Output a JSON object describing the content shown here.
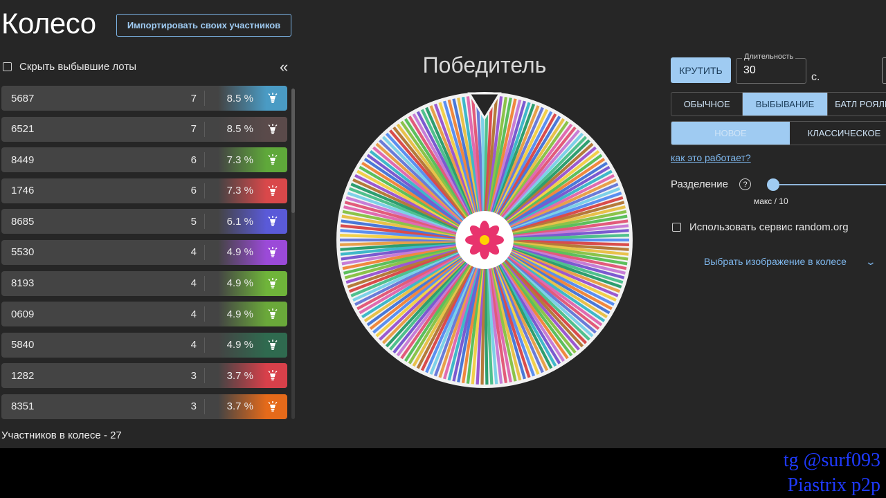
{
  "app": {
    "title": "Колесо",
    "import_button": "Импортировать своих участников"
  },
  "lots_panel": {
    "hide_label": "Скрыть выбывшие лоты",
    "collapse_icon": "«",
    "items": [
      {
        "name": "5687",
        "amount": "7",
        "percent": "8.5 %",
        "color": "#4a9bc4"
      },
      {
        "name": "6521",
        "amount": "7",
        "percent": "8.5 %",
        "color": "#5a4a4a"
      },
      {
        "name": "8449",
        "amount": "6",
        "percent": "7.3 %",
        "color": "#5fa83a"
      },
      {
        "name": "1746",
        "amount": "6",
        "percent": "7.3 %",
        "color": "#d9484a"
      },
      {
        "name": "8685",
        "amount": "5",
        "percent": "6.1 %",
        "color": "#5a5ad8"
      },
      {
        "name": "5530",
        "amount": "4",
        "percent": "4.9 %",
        "color": "#9b4ad8"
      },
      {
        "name": "8193",
        "amount": "4",
        "percent": "4.9 %",
        "color": "#6fb43a"
      },
      {
        "name": "0609",
        "amount": "4",
        "percent": "4.9 %",
        "color": "#6aa83a"
      },
      {
        "name": "5840",
        "amount": "4",
        "percent": "4.9 %",
        "color": "#2f6a4f"
      },
      {
        "name": "1282",
        "amount": "3",
        "percent": "3.7 %",
        "color": "#d8404a"
      },
      {
        "name": "8351",
        "amount": "3",
        "percent": "3.7 %",
        "color": "#e56a1a"
      }
    ],
    "participants": "Участников в колесе - 27"
  },
  "wheel": {
    "title": "Победитель"
  },
  "controls": {
    "spin_button": "КРУТИТЬ",
    "duration_label": "Длительность",
    "duration_value": "30",
    "duration_unit": "с.",
    "modes": [
      "ОБЫЧНОЕ",
      "ВЫБЫВАНИЕ",
      "БАТЛ РОЯЛЬ"
    ],
    "active_mode": 1,
    "types": [
      "НОВОЕ",
      "КЛАССИЧЕСКОЕ"
    ],
    "active_type": 0,
    "how_link": "как это работает?",
    "split_label": "Разделение",
    "help_icon": "?",
    "split_caption": "макс / 10",
    "random_org_label": "Использовать сервис random.org",
    "image_select": "Выбрать изображение в колесе",
    "chevron_icon": "⌄"
  },
  "watermark": {
    "line1": "tg @surf093",
    "line2": "Piastrix p2p"
  },
  "colors": {
    "accent": "#9fcbf2",
    "link": "#7fb8ee",
    "flower": "#e8336d",
    "flower_center": "#ffd400"
  }
}
